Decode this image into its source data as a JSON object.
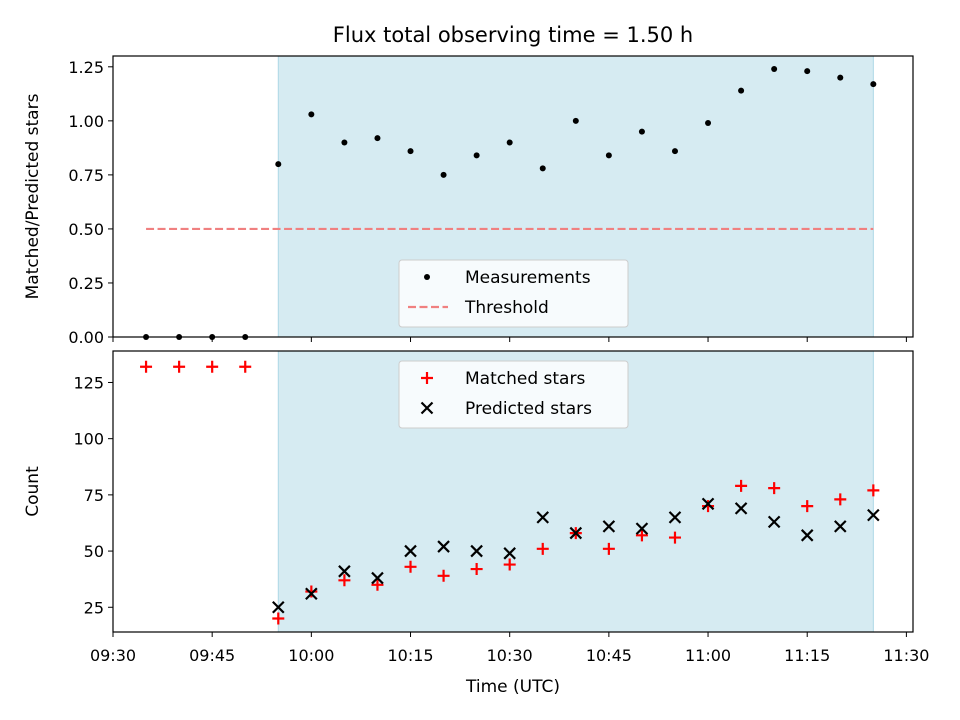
{
  "figure": {
    "title": "Flux total observing time = 1.50 h",
    "xlabel": "Time (UTC)"
  },
  "colors": {
    "shade": "#add8e6",
    "measurement": "#000000",
    "threshold": "#f08080",
    "matched": "#ff0000",
    "predicted": "#000000"
  },
  "chart_data": [
    {
      "type": "scatter",
      "ylabel": "Matched/Predicted stars",
      "ylim": [
        0.0,
        1.3
      ],
      "yticks": [
        0.0,
        0.25,
        0.5,
        0.75,
        1.0,
        1.25
      ],
      "ytick_labels": [
        "0.00",
        "0.25",
        "0.50",
        "0.75",
        "1.00",
        "1.25"
      ],
      "xlim": [
        "09:30",
        "11:31"
      ],
      "shaded_interval": [
        "09:55",
        "11:25"
      ],
      "legend_position": "lower center",
      "series": [
        {
          "name": "Measurements",
          "marker": "dot",
          "x": [
            "09:35",
            "09:40",
            "09:45",
            "09:50",
            "09:55",
            "10:00",
            "10:05",
            "10:10",
            "10:15",
            "10:20",
            "10:25",
            "10:30",
            "10:35",
            "10:40",
            "10:45",
            "10:50",
            "10:55",
            "11:00",
            "11:05",
            "11:10",
            "11:15",
            "11:20",
            "11:25"
          ],
          "y": [
            0.0,
            0.0,
            0.0,
            0.0,
            0.8,
            1.03,
            0.9,
            0.92,
            0.86,
            0.75,
            0.84,
            0.9,
            0.78,
            1.0,
            0.84,
            0.95,
            0.86,
            0.99,
            1.14,
            1.24,
            1.23,
            1.2,
            1.17
          ]
        },
        {
          "name": "Threshold",
          "marker": "dashed-line",
          "x": [
            "09:35",
            "11:25"
          ],
          "y": [
            0.5,
            0.5
          ]
        }
      ]
    },
    {
      "type": "scatter",
      "ylabel": "Count",
      "ylim": [
        14,
        139
      ],
      "yticks": [
        25,
        50,
        75,
        100,
        125
      ],
      "ytick_labels": [
        "25",
        "50",
        "75",
        "100",
        "125"
      ],
      "xlim": [
        "09:30",
        "11:31"
      ],
      "xticks": [
        "09:30",
        "09:45",
        "10:00",
        "10:15",
        "10:30",
        "10:45",
        "11:00",
        "11:15",
        "11:30"
      ],
      "shaded_interval": [
        "09:55",
        "11:25"
      ],
      "legend_position": "upper center",
      "series": [
        {
          "name": "Matched stars",
          "marker": "plus",
          "x": [
            "09:35",
            "09:40",
            "09:45",
            "09:50",
            "09:55",
            "10:00",
            "10:05",
            "10:10",
            "10:15",
            "10:20",
            "10:25",
            "10:30",
            "10:35",
            "10:40",
            "10:45",
            "10:50",
            "10:55",
            "11:00",
            "11:05",
            "11:10",
            "11:15",
            "11:20",
            "11:25"
          ],
          "y": [
            132,
            132,
            132,
            132,
            20,
            32,
            37,
            35,
            43,
            39,
            42,
            44,
            51,
            58,
            51,
            57,
            56,
            70,
            79,
            78,
            70,
            73,
            77
          ]
        },
        {
          "name": "Predicted stars",
          "marker": "x",
          "x": [
            "09:55",
            "10:00",
            "10:05",
            "10:10",
            "10:15",
            "10:20",
            "10:25",
            "10:30",
            "10:35",
            "10:40",
            "10:45",
            "10:50",
            "10:55",
            "11:00",
            "11:05",
            "11:10",
            "11:15",
            "11:20",
            "11:25"
          ],
          "y": [
            25,
            31,
            41,
            38,
            50,
            52,
            50,
            49,
            65,
            58,
            61,
            60,
            65,
            71,
            69,
            63,
            57,
            61,
            66
          ]
        }
      ]
    }
  ]
}
